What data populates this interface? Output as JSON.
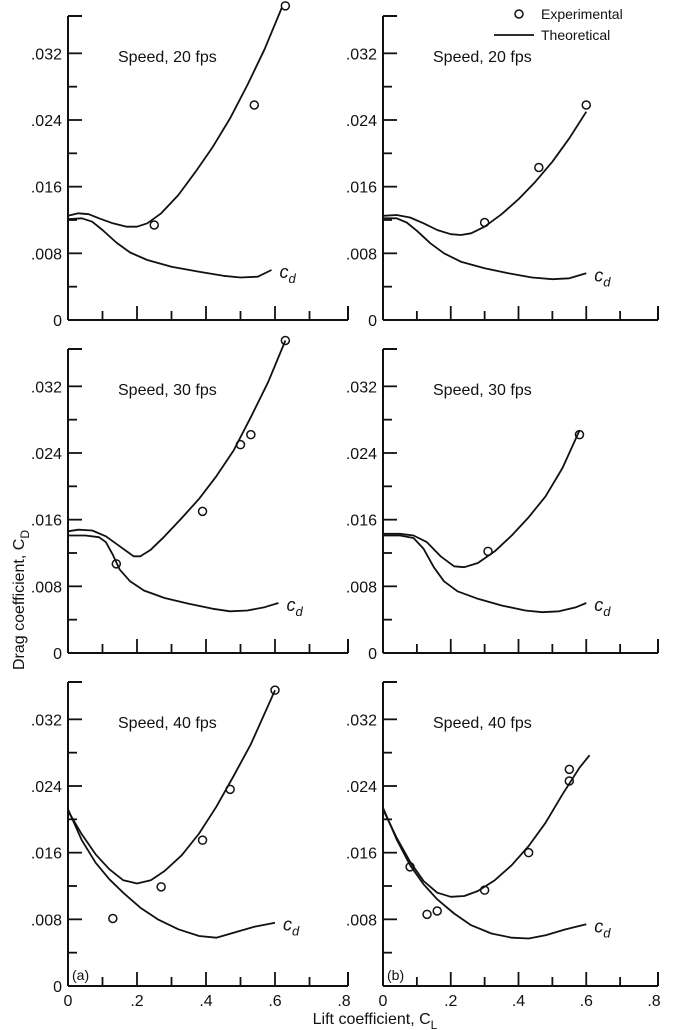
{
  "figure": {
    "ylabel": "Drag coefficient, C",
    "ylabel_sub": "D",
    "xlabel": "Lift coefficient, C",
    "xlabel_sub": "L",
    "legend": {
      "experimental": "Experimental",
      "theoretical": "Theoretical"
    }
  },
  "chart_data": [
    {
      "type": "line",
      "column": "a",
      "panel_letter": "",
      "speed_label": "Speed, 20 fps",
      "xlim": [
        0,
        0.8
      ],
      "ylim": [
        0,
        0.036
      ],
      "xticks": [
        "0",
        ".2",
        ".4",
        ".6",
        ".8"
      ],
      "xtick_values": [
        0,
        0.2,
        0.4,
        0.6,
        0.8
      ],
      "yticks": [
        "0",
        ".008",
        ".016",
        ".024",
        ".032"
      ],
      "ytick_values": [
        0,
        0.008,
        0.016,
        0.024,
        0.032
      ],
      "curve_label": "c",
      "curve_label_sub": "d",
      "series": [
        {
          "role": "theoretical-CD",
          "x": [
            0,
            0.03,
            0.06,
            0.09,
            0.13,
            0.17,
            0.2,
            0.23,
            0.27,
            0.32,
            0.37,
            0.42,
            0.47,
            0.52,
            0.57,
            0.62
          ],
          "y": [
            0.0125,
            0.0128,
            0.0127,
            0.0122,
            0.0116,
            0.0112,
            0.0112,
            0.0116,
            0.0128,
            0.015,
            0.0178,
            0.0208,
            0.0242,
            0.0282,
            0.0325,
            0.0375
          ]
        },
        {
          "role": "theoretical-cd",
          "x": [
            0,
            0.04,
            0.07,
            0.1,
            0.14,
            0.18,
            0.23,
            0.3,
            0.38,
            0.45,
            0.5,
            0.55,
            0.59
          ],
          "y": [
            0.0121,
            0.0122,
            0.0118,
            0.0108,
            0.0093,
            0.0081,
            0.0072,
            0.0064,
            0.0058,
            0.0053,
            0.0051,
            0.0052,
            0.006
          ]
        },
        {
          "role": "experimental",
          "x": [
            0.25,
            0.54,
            0.63
          ],
          "y": [
            0.0114,
            0.0258,
            0.0377
          ]
        }
      ]
    },
    {
      "type": "line",
      "column": "b",
      "panel_letter": "",
      "speed_label": "Speed, 20 fps",
      "xlim": [
        0,
        0.8
      ],
      "ylim": [
        0,
        0.036
      ],
      "xticks": [
        "0",
        ".2",
        ".4",
        ".6",
        ".8"
      ],
      "xtick_values": [
        0,
        0.2,
        0.4,
        0.6,
        0.8
      ],
      "yticks": [
        "0",
        ".008",
        ".016",
        ".024",
        ".032"
      ],
      "ytick_values": [
        0,
        0.008,
        0.016,
        0.024,
        0.032
      ],
      "curve_label": "c",
      "curve_label_sub": "d",
      "series": [
        {
          "role": "theoretical-CD",
          "x": [
            0,
            0.04,
            0.08,
            0.12,
            0.16,
            0.2,
            0.23,
            0.26,
            0.3,
            0.35,
            0.4,
            0.45,
            0.5,
            0.55,
            0.6
          ],
          "y": [
            0.0125,
            0.0126,
            0.0123,
            0.0116,
            0.0108,
            0.0103,
            0.0102,
            0.0104,
            0.0112,
            0.0127,
            0.0145,
            0.0166,
            0.019,
            0.0218,
            0.025
          ]
        },
        {
          "role": "theoretical-cd",
          "x": [
            0,
            0.04,
            0.07,
            0.1,
            0.14,
            0.18,
            0.23,
            0.3,
            0.37,
            0.44,
            0.5,
            0.55,
            0.6
          ],
          "y": [
            0.0122,
            0.0122,
            0.0117,
            0.0107,
            0.0092,
            0.008,
            0.007,
            0.0062,
            0.0056,
            0.0051,
            0.0049,
            0.005,
            0.0056
          ]
        },
        {
          "role": "experimental",
          "x": [
            0.3,
            0.46,
            0.6
          ],
          "y": [
            0.0117,
            0.0183,
            0.0258
          ]
        }
      ]
    },
    {
      "type": "line",
      "column": "a",
      "panel_letter": "",
      "speed_label": "Speed, 30 fps",
      "xlim": [
        0,
        0.8
      ],
      "ylim": [
        0,
        0.036
      ],
      "xticks": [
        "0",
        ".2",
        ".4",
        ".6",
        ".8"
      ],
      "xtick_values": [
        0,
        0.2,
        0.4,
        0.6,
        0.8
      ],
      "yticks": [
        "0",
        ".008",
        ".016",
        ".024",
        ".032"
      ],
      "ytick_values": [
        0,
        0.008,
        0.016,
        0.024,
        0.032
      ],
      "curve_label": "c",
      "curve_label_sub": "d",
      "series": [
        {
          "role": "theoretical-CD",
          "x": [
            0,
            0.03,
            0.07,
            0.11,
            0.15,
            0.19,
            0.21,
            0.24,
            0.28,
            0.33,
            0.38,
            0.43,
            0.48,
            0.53,
            0.58,
            0.63
          ],
          "y": [
            0.0146,
            0.0148,
            0.0147,
            0.014,
            0.0128,
            0.0116,
            0.0116,
            0.0124,
            0.014,
            0.0162,
            0.0185,
            0.0212,
            0.0243,
            0.0283,
            0.0325,
            0.0375
          ]
        },
        {
          "role": "theoretical-cd",
          "x": [
            0,
            0.05,
            0.09,
            0.11,
            0.13,
            0.15,
            0.18,
            0.22,
            0.28,
            0.35,
            0.42,
            0.47,
            0.52,
            0.57,
            0.61
          ],
          "y": [
            0.0141,
            0.0141,
            0.0139,
            0.0133,
            0.0118,
            0.01,
            0.0086,
            0.0075,
            0.0066,
            0.0059,
            0.0053,
            0.005,
            0.0051,
            0.0055,
            0.006
          ]
        },
        {
          "role": "experimental",
          "x": [
            0.14,
            0.39,
            0.5,
            0.53,
            0.63
          ],
          "y": [
            0.0107,
            0.017,
            0.025,
            0.0262,
            0.0375
          ]
        }
      ]
    },
    {
      "type": "line",
      "column": "b",
      "panel_letter": "",
      "speed_label": "Speed, 30 fps",
      "xlim": [
        0,
        0.8
      ],
      "ylim": [
        0,
        0.036
      ],
      "xticks": [
        "0",
        ".2",
        ".4",
        ".6",
        ".8"
      ],
      "xtick_values": [
        0,
        0.2,
        0.4,
        0.6,
        0.8
      ],
      "yticks": [
        "0",
        ".008",
        ".016",
        ".024",
        ".032"
      ],
      "ytick_values": [
        0,
        0.008,
        0.016,
        0.024,
        0.032
      ],
      "curve_label": "c",
      "curve_label_sub": "d",
      "series": [
        {
          "role": "theoretical-CD",
          "x": [
            0,
            0.05,
            0.09,
            0.13,
            0.17,
            0.21,
            0.24,
            0.28,
            0.33,
            0.38,
            0.43,
            0.48,
            0.53,
            0.58
          ],
          "y": [
            0.0143,
            0.0143,
            0.0141,
            0.0133,
            0.0116,
            0.0104,
            0.0103,
            0.0108,
            0.0122,
            0.0141,
            0.0163,
            0.0188,
            0.0222,
            0.0267
          ]
        },
        {
          "role": "theoretical-cd",
          "x": [
            0,
            0.05,
            0.09,
            0.12,
            0.15,
            0.18,
            0.22,
            0.28,
            0.35,
            0.42,
            0.47,
            0.52,
            0.57,
            0.6
          ],
          "y": [
            0.0141,
            0.0141,
            0.0138,
            0.0125,
            0.0103,
            0.0086,
            0.0074,
            0.0065,
            0.0057,
            0.0051,
            0.0049,
            0.005,
            0.0055,
            0.006
          ]
        },
        {
          "role": "experimental",
          "x": [
            0.31,
            0.58
          ],
          "y": [
            0.0122,
            0.0262
          ]
        }
      ]
    },
    {
      "type": "line",
      "column": "a",
      "panel_letter": "(a)",
      "speed_label": "Speed, 40 fps",
      "xlim": [
        0,
        0.8
      ],
      "ylim": [
        0,
        0.036
      ],
      "xticks": [
        "0",
        ".2",
        ".4",
        ".6",
        ".8"
      ],
      "xtick_values": [
        0,
        0.2,
        0.4,
        0.6,
        0.8
      ],
      "yticks": [
        "0",
        ".008",
        ".016",
        ".024",
        ".032"
      ],
      "ytick_values": [
        0,
        0.008,
        0.016,
        0.024,
        0.032
      ],
      "curve_label": "c",
      "curve_label_sub": "d",
      "series": [
        {
          "role": "theoretical-CD",
          "x": [
            0,
            0.04,
            0.08,
            0.12,
            0.16,
            0.2,
            0.24,
            0.28,
            0.33,
            0.38,
            0.43,
            0.48,
            0.53,
            0.6
          ],
          "y": [
            0.021,
            0.0182,
            0.0158,
            0.014,
            0.0127,
            0.0123,
            0.0127,
            0.0138,
            0.0157,
            0.0183,
            0.0215,
            0.0252,
            0.029,
            0.0355
          ]
        },
        {
          "role": "theoretical-cd",
          "x": [
            0,
            0.04,
            0.08,
            0.12,
            0.16,
            0.21,
            0.26,
            0.32,
            0.38,
            0.43,
            0.48,
            0.54,
            0.6
          ],
          "y": [
            0.0212,
            0.0175,
            0.0148,
            0.0128,
            0.0112,
            0.0094,
            0.008,
            0.0068,
            0.006,
            0.0058,
            0.0064,
            0.0071,
            0.0076
          ]
        },
        {
          "role": "experimental",
          "x": [
            0.13,
            0.27,
            0.39,
            0.47,
            0.6
          ],
          "y": [
            0.0081,
            0.0119,
            0.0175,
            0.0236,
            0.0355
          ]
        }
      ]
    },
    {
      "type": "line",
      "column": "b",
      "panel_letter": "(b)",
      "speed_label": "Speed, 40 fps",
      "xlim": [
        0,
        0.8
      ],
      "ylim": [
        0,
        0.036
      ],
      "xticks": [
        "0",
        ".2",
        ".4",
        ".6",
        ".8"
      ],
      "xtick_values": [
        0,
        0.2,
        0.4,
        0.6,
        0.8
      ],
      "yticks": [
        "0",
        ".008",
        ".016",
        ".024",
        ".032"
      ],
      "ytick_values": [
        0,
        0.008,
        0.016,
        0.024,
        0.032
      ],
      "curve_label": "c",
      "curve_label_sub": "d",
      "series": [
        {
          "role": "theoretical-CD",
          "x": [
            0,
            0.04,
            0.08,
            0.12,
            0.16,
            0.2,
            0.24,
            0.28,
            0.33,
            0.38,
            0.43,
            0.48,
            0.53,
            0.58,
            0.61
          ],
          "y": [
            0.0212,
            0.0178,
            0.0149,
            0.0126,
            0.0112,
            0.0107,
            0.0108,
            0.0114,
            0.0127,
            0.0145,
            0.0168,
            0.0196,
            0.023,
            0.0262,
            0.0277
          ]
        },
        {
          "role": "theoretical-cd",
          "x": [
            0,
            0.04,
            0.08,
            0.12,
            0.16,
            0.21,
            0.26,
            0.32,
            0.38,
            0.43,
            0.48,
            0.54,
            0.6
          ],
          "y": [
            0.0214,
            0.0176,
            0.0145,
            0.0122,
            0.0104,
            0.0087,
            0.0073,
            0.0063,
            0.0058,
            0.0057,
            0.0061,
            0.0068,
            0.0074
          ]
        },
        {
          "role": "experimental",
          "x": [
            0.08,
            0.13,
            0.16,
            0.3,
            0.43,
            0.55,
            0.55
          ],
          "y": [
            0.0143,
            0.0086,
            0.009,
            0.0115,
            0.016,
            0.0246,
            0.026
          ]
        }
      ]
    }
  ]
}
